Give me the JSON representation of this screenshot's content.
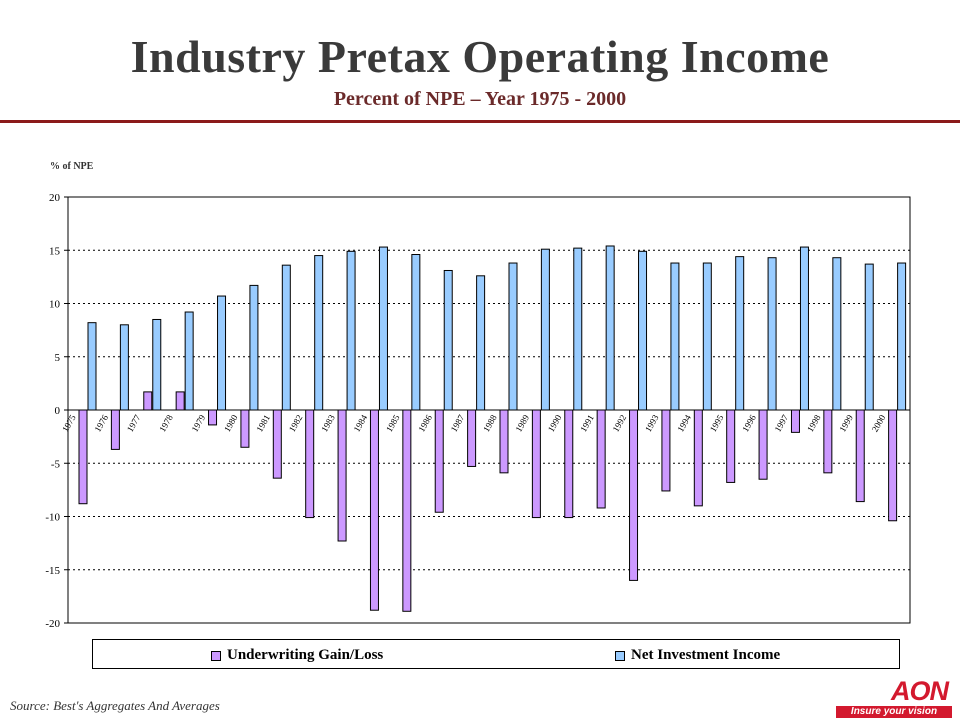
{
  "header": {
    "title": "Industry Pretax Operating Income",
    "subtitle": "Percent of NPE – Year 1975 - 2000"
  },
  "footer": {
    "source": "Source:   Best's Aggregates And Averages",
    "logo_text": "AON",
    "logo_tagline": "Insure your vision"
  },
  "colors": {
    "underwriting": "#cc99ff",
    "investment": "#99ccff",
    "rule": "#8b1a1a",
    "brand": "#d3192e"
  },
  "chart_data": {
    "type": "bar",
    "title": "",
    "ylabel": "% of NPE",
    "xlabel": "",
    "ylim": [
      -20,
      20
    ],
    "yticks": [
      20,
      15,
      10,
      5,
      0,
      -5,
      -10,
      -15,
      -20
    ],
    "grid": true,
    "legend_position": "bottom",
    "categories": [
      "1975",
      "1976",
      "1977",
      "1978",
      "1979",
      "1980",
      "1981",
      "1982",
      "1983",
      "1984",
      "1985",
      "1986",
      "1987",
      "1988",
      "1989",
      "1990",
      "1991",
      "1992",
      "1993",
      "1994",
      "1995",
      "1996",
      "1997",
      "1998",
      "1999",
      "2000"
    ],
    "series": [
      {
        "name": "Underwriting Gain/Loss",
        "values": [
          -8.8,
          -3.7,
          1.7,
          1.7,
          -1.4,
          -3.5,
          -6.4,
          -10.1,
          -12.3,
          -18.8,
          -18.9,
          -9.6,
          -5.3,
          -5.9,
          -10.1,
          -10.1,
          -9.2,
          -16.0,
          -7.6,
          -9.0,
          -6.8,
          -6.5,
          -2.1,
          -5.9,
          -8.6,
          -10.4
        ]
      },
      {
        "name": "Net Investment Income",
        "values": [
          8.2,
          8.0,
          8.5,
          9.2,
          10.7,
          11.7,
          13.6,
          14.5,
          14.9,
          15.3,
          14.6,
          13.1,
          12.6,
          13.8,
          15.1,
          15.2,
          15.4,
          14.9,
          13.8,
          13.8,
          14.4,
          14.3,
          15.3,
          14.3,
          13.7,
          13.8
        ]
      }
    ]
  }
}
